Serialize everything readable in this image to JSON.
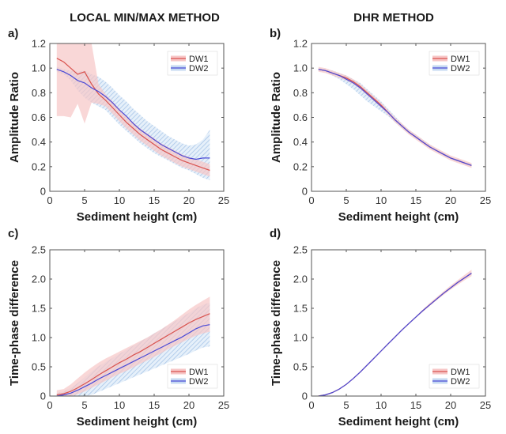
{
  "figure": {
    "left_title": "LOCAL MIN/MAX METHOD",
    "right_title": "DHR METHOD"
  },
  "colors": {
    "dw1": "#d9534f",
    "dw1_band": "#f7c6c6",
    "dw2": "#4a4ad6",
    "dw2_band": "#a9c7ea",
    "axis": "#555555"
  },
  "chart_data": [
    {
      "panel": "a)",
      "type": "line",
      "xlabel": "Sediment height (cm)",
      "ylabel": "Amplitude Ratio",
      "xlim": [
        0,
        25
      ],
      "ylim": [
        0,
        1.2
      ],
      "xticks": [
        0,
        5,
        10,
        15,
        20,
        25
      ],
      "yticks": [
        0,
        0.2,
        0.4,
        0.6,
        0.8,
        1,
        1.2
      ],
      "ytick_labels": [
        "0",
        "0.2",
        "0.4",
        "0.6",
        "0.8",
        "1.0",
        "1.2"
      ],
      "legend": "top-right",
      "series": [
        {
          "name": "DW1",
          "x": [
            1,
            2,
            3,
            4,
            5,
            6,
            7,
            8,
            9,
            10,
            11,
            12,
            13,
            14,
            15,
            16,
            17,
            18,
            19,
            20,
            21,
            22,
            23
          ],
          "y": [
            1.08,
            1.05,
            1.0,
            0.95,
            0.97,
            0.87,
            0.79,
            0.74,
            0.68,
            0.62,
            0.56,
            0.51,
            0.46,
            0.42,
            0.38,
            0.34,
            0.31,
            0.28,
            0.25,
            0.23,
            0.21,
            0.19,
            0.17
          ],
          "lower": [
            0.61,
            0.61,
            0.6,
            0.71,
            0.55,
            0.72,
            0.71,
            0.69,
            0.63,
            0.57,
            0.51,
            0.46,
            0.41,
            0.37,
            0.33,
            0.29,
            0.26,
            0.23,
            0.2,
            0.18,
            0.16,
            0.14,
            0.12
          ],
          "upper": [
            1.2,
            1.2,
            1.2,
            1.2,
            1.2,
            1.2,
            0.87,
            0.79,
            0.73,
            0.67,
            0.61,
            0.56,
            0.51,
            0.47,
            0.43,
            0.39,
            0.36,
            0.33,
            0.3,
            0.28,
            0.26,
            0.24,
            0.22
          ]
        },
        {
          "name": "DW2",
          "x": [
            1,
            2,
            3,
            4,
            5,
            6,
            7,
            8,
            9,
            10,
            11,
            12,
            13,
            14,
            15,
            16,
            17,
            18,
            19,
            20,
            21,
            22,
            23
          ],
          "y": [
            0.99,
            0.97,
            0.94,
            0.9,
            0.88,
            0.84,
            0.81,
            0.77,
            0.72,
            0.66,
            0.61,
            0.55,
            0.5,
            0.46,
            0.42,
            0.38,
            0.35,
            0.32,
            0.29,
            0.27,
            0.26,
            0.27,
            0.27
          ],
          "lower": [
            0.97,
            0.95,
            0.9,
            0.82,
            0.76,
            0.72,
            0.69,
            0.66,
            0.6,
            0.54,
            0.49,
            0.44,
            0.39,
            0.35,
            0.31,
            0.28,
            0.25,
            0.22,
            0.19,
            0.17,
            0.14,
            0.11,
            0.09
          ],
          "upper": [
            1.01,
            0.99,
            0.98,
            0.97,
            0.98,
            0.95,
            0.93,
            0.89,
            0.84,
            0.78,
            0.73,
            0.67,
            0.62,
            0.57,
            0.53,
            0.49,
            0.45,
            0.42,
            0.39,
            0.37,
            0.38,
            0.42,
            0.5
          ]
        }
      ]
    },
    {
      "panel": "b)",
      "type": "line",
      "xlabel": "Sediment height (cm)",
      "ylabel": "Amplitude Ratio",
      "xlim": [
        0,
        25
      ],
      "ylim": [
        0,
        1.2
      ],
      "xticks": [
        0,
        5,
        10,
        15,
        20,
        25
      ],
      "yticks": [
        0,
        0.2,
        0.4,
        0.6,
        0.8,
        1,
        1.2
      ],
      "ytick_labels": [
        "0",
        "0.2",
        "0.4",
        "0.6",
        "0.8",
        "1.0",
        "1.2"
      ],
      "legend": "top-right",
      "series": [
        {
          "name": "DW1",
          "x": [
            1,
            2,
            3,
            4,
            5,
            6,
            7,
            8,
            9,
            10,
            11,
            12,
            13,
            14,
            15,
            16,
            17,
            18,
            19,
            20,
            21,
            22,
            23
          ],
          "y": [
            0.99,
            0.98,
            0.96,
            0.94,
            0.92,
            0.89,
            0.85,
            0.8,
            0.75,
            0.7,
            0.64,
            0.58,
            0.53,
            0.48,
            0.44,
            0.4,
            0.36,
            0.33,
            0.3,
            0.27,
            0.25,
            0.23,
            0.21
          ],
          "lower": [
            0.97,
            0.96,
            0.94,
            0.92,
            0.9,
            0.87,
            0.83,
            0.78,
            0.73,
            0.68,
            0.62,
            0.56,
            0.51,
            0.46,
            0.42,
            0.38,
            0.34,
            0.31,
            0.28,
            0.25,
            0.23,
            0.21,
            0.19
          ],
          "upper": [
            1.01,
            1.0,
            0.98,
            0.96,
            0.94,
            0.91,
            0.87,
            0.82,
            0.77,
            0.72,
            0.66,
            0.6,
            0.55,
            0.5,
            0.46,
            0.42,
            0.38,
            0.35,
            0.32,
            0.29,
            0.27,
            0.25,
            0.23
          ]
        },
        {
          "name": "DW2",
          "x": [
            1,
            2,
            3,
            4,
            5,
            6,
            7,
            8,
            9,
            10,
            11,
            12,
            13,
            14,
            15,
            16,
            17,
            18,
            19,
            20,
            21,
            22,
            23
          ],
          "y": [
            0.99,
            0.98,
            0.96,
            0.94,
            0.91,
            0.88,
            0.84,
            0.79,
            0.74,
            0.69,
            0.64,
            0.58,
            0.53,
            0.48,
            0.44,
            0.4,
            0.36,
            0.33,
            0.3,
            0.27,
            0.25,
            0.23,
            0.21
          ],
          "lower": [
            0.98,
            0.97,
            0.94,
            0.91,
            0.87,
            0.83,
            0.78,
            0.73,
            0.69,
            0.65,
            0.61,
            0.56,
            0.51,
            0.47,
            0.43,
            0.39,
            0.35,
            0.32,
            0.29,
            0.26,
            0.24,
            0.22,
            0.2
          ],
          "upper": [
            1.0,
            0.99,
            0.98,
            0.96,
            0.94,
            0.91,
            0.88,
            0.83,
            0.78,
            0.73,
            0.67,
            0.61,
            0.55,
            0.5,
            0.46,
            0.42,
            0.38,
            0.34,
            0.31,
            0.28,
            0.26,
            0.24,
            0.22
          ]
        }
      ]
    },
    {
      "panel": "c)",
      "type": "line",
      "xlabel": "Sediment height (cm)",
      "ylabel": "Time-phase difference",
      "xlim": [
        0,
        25
      ],
      "ylim": [
        0,
        2.5
      ],
      "xticks": [
        0,
        5,
        10,
        15,
        20,
        25
      ],
      "yticks": [
        0,
        0.5,
        1,
        1.5,
        2,
        2.5
      ],
      "ytick_labels": [
        "0",
        "0.5",
        "1.0",
        "1.5",
        "2.0",
        "2.5"
      ],
      "legend": "bottom-right",
      "series": [
        {
          "name": "DW1",
          "x": [
            1,
            2,
            3,
            4,
            5,
            6,
            7,
            8,
            9,
            10,
            11,
            12,
            13,
            14,
            15,
            16,
            17,
            18,
            19,
            20,
            21,
            22,
            23
          ],
          "y": [
            0.02,
            0.04,
            0.08,
            0.14,
            0.21,
            0.28,
            0.36,
            0.43,
            0.5,
            0.57,
            0.63,
            0.7,
            0.76,
            0.83,
            0.9,
            0.97,
            1.04,
            1.11,
            1.18,
            1.25,
            1.31,
            1.36,
            1.41
          ],
          "lower": [
            0.0,
            0.0,
            0.0,
            0.03,
            0.08,
            0.14,
            0.2,
            0.26,
            0.32,
            0.38,
            0.43,
            0.49,
            0.55,
            0.61,
            0.67,
            0.73,
            0.8,
            0.86,
            0.92,
            0.98,
            1.03,
            1.07,
            1.1
          ],
          "upper": [
            0.1,
            0.12,
            0.2,
            0.3,
            0.4,
            0.49,
            0.57,
            0.64,
            0.7,
            0.76,
            0.82,
            0.88,
            0.94,
            1.0,
            1.07,
            1.14,
            1.22,
            1.3,
            1.39,
            1.48,
            1.56,
            1.63,
            1.7
          ]
        },
        {
          "name": "DW2",
          "x": [
            1,
            2,
            3,
            4,
            5,
            6,
            7,
            8,
            9,
            10,
            11,
            12,
            13,
            14,
            15,
            16,
            17,
            18,
            19,
            20,
            21,
            22,
            23
          ],
          "y": [
            0.0,
            0.02,
            0.05,
            0.1,
            0.16,
            0.22,
            0.29,
            0.35,
            0.41,
            0.47,
            0.53,
            0.59,
            0.65,
            0.71,
            0.77,
            0.83,
            0.89,
            0.95,
            1.01,
            1.08,
            1.15,
            1.2,
            1.22
          ],
          "lower": [
            0.0,
            0.0,
            0.0,
            0.0,
            0.0,
            0.02,
            0.07,
            0.12,
            0.17,
            0.22,
            0.27,
            0.32,
            0.37,
            0.42,
            0.47,
            0.52,
            0.57,
            0.62,
            0.67,
            0.72,
            0.78,
            0.83,
            0.85
          ],
          "upper": [
            0.05,
            0.08,
            0.14,
            0.22,
            0.32,
            0.42,
            0.51,
            0.58,
            0.65,
            0.72,
            0.79,
            0.86,
            0.93,
            1.0,
            1.07,
            1.14,
            1.21,
            1.28,
            1.35,
            1.42,
            1.5,
            1.56,
            1.6
          ]
        }
      ]
    },
    {
      "panel": "d)",
      "type": "line",
      "xlabel": "Sediment height (cm)",
      "ylabel": "Time-phase difference",
      "xlim": [
        0,
        25
      ],
      "ylim": [
        0,
        2.5
      ],
      "xticks": [
        0,
        5,
        10,
        15,
        20,
        25
      ],
      "yticks": [
        0,
        0.5,
        1,
        1.5,
        2,
        2.5
      ],
      "ytick_labels": [
        "0",
        "0.5",
        "1.0",
        "1.5",
        "2.0",
        "2.5"
      ],
      "legend": "bottom-right",
      "series": [
        {
          "name": "DW1",
          "x": [
            1,
            2,
            3,
            4,
            5,
            6,
            7,
            8,
            9,
            10,
            11,
            12,
            13,
            14,
            15,
            16,
            17,
            18,
            19,
            20,
            21,
            22,
            23
          ],
          "y": [
            0.0,
            0.02,
            0.06,
            0.12,
            0.2,
            0.3,
            0.41,
            0.53,
            0.65,
            0.77,
            0.89,
            1.01,
            1.13,
            1.24,
            1.35,
            1.46,
            1.56,
            1.66,
            1.76,
            1.85,
            1.94,
            2.02,
            2.1
          ],
          "lower": [
            0.0,
            0.01,
            0.05,
            0.11,
            0.19,
            0.29,
            0.4,
            0.52,
            0.64,
            0.76,
            0.88,
            1.0,
            1.12,
            1.23,
            1.34,
            1.44,
            1.54,
            1.64,
            1.73,
            1.82,
            1.9,
            1.98,
            2.05
          ],
          "upper": [
            0.01,
            0.03,
            0.07,
            0.13,
            0.21,
            0.31,
            0.42,
            0.54,
            0.66,
            0.78,
            0.9,
            1.02,
            1.14,
            1.25,
            1.36,
            1.48,
            1.59,
            1.69,
            1.79,
            1.89,
            1.98,
            2.07,
            2.16
          ]
        },
        {
          "name": "DW2",
          "x": [
            1,
            2,
            3,
            4,
            5,
            6,
            7,
            8,
            9,
            10,
            11,
            12,
            13,
            14,
            15,
            16,
            17,
            18,
            19,
            20,
            21,
            22,
            23
          ],
          "y": [
            0.0,
            0.02,
            0.06,
            0.12,
            0.2,
            0.3,
            0.41,
            0.53,
            0.65,
            0.77,
            0.89,
            1.01,
            1.13,
            1.24,
            1.35,
            1.46,
            1.56,
            1.66,
            1.76,
            1.85,
            1.94,
            2.02,
            2.1
          ],
          "lower": [
            0.0,
            0.01,
            0.05,
            0.11,
            0.19,
            0.29,
            0.4,
            0.52,
            0.64,
            0.76,
            0.88,
            1.0,
            1.12,
            1.23,
            1.34,
            1.45,
            1.55,
            1.65,
            1.75,
            1.84,
            1.93,
            2.01,
            2.08
          ],
          "upper": [
            0.01,
            0.03,
            0.07,
            0.13,
            0.21,
            0.31,
            0.42,
            0.54,
            0.66,
            0.78,
            0.9,
            1.02,
            1.14,
            1.25,
            1.36,
            1.47,
            1.57,
            1.67,
            1.77,
            1.86,
            1.95,
            2.03,
            2.12
          ]
        }
      ]
    }
  ]
}
